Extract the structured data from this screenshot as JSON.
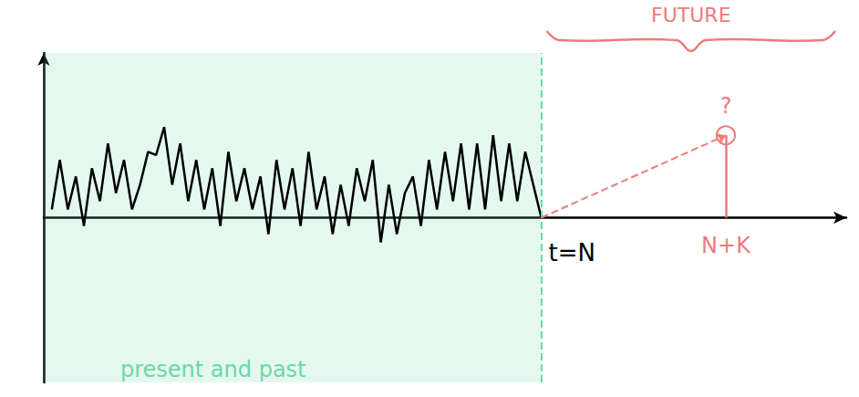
{
  "chart_data": {
    "type": "line",
    "xlim": [
      0,
      100
    ],
    "ylim": [
      -10,
      10
    ],
    "tick_labels": false,
    "grid": false,
    "color": "#000000",
    "x": [
      1,
      2,
      3,
      4,
      5,
      6,
      7,
      8,
      9,
      10,
      11,
      12,
      13,
      14,
      15,
      16,
      17,
      18,
      19,
      20,
      21,
      22,
      23,
      24,
      25,
      26,
      27,
      28,
      29,
      30,
      31,
      32,
      33,
      34,
      35,
      36,
      37,
      38,
      39,
      40,
      41,
      42,
      43,
      44,
      45,
      46,
      47,
      48,
      49,
      50,
      51,
      52,
      53,
      54,
      55,
      56,
      57,
      58,
      59,
      60,
      61,
      62
    ],
    "values": [
      0.5,
      3.5,
      0.5,
      2.5,
      -0.5,
      3,
      1,
      4.5,
      1.5,
      3.5,
      0.5,
      2,
      4,
      3.8,
      5.5,
      2,
      4.5,
      1,
      3.5,
      0.5,
      3,
      -0.5,
      4,
      1,
      3,
      0.5,
      2.5,
      -1,
      3.5,
      0.5,
      3,
      -0.5,
      4,
      0.5,
      2.5,
      -1,
      2,
      -0.5,
      3,
      1,
      3.5,
      -1.5,
      2,
      -1,
      1.5,
      2.5,
      -0.5,
      3.5,
      0.5,
      4,
      1,
      4.5,
      0.5,
      4.5,
      0.5,
      5,
      1,
      4.5,
      1,
      4,
      2,
      0
    ],
    "present": {
      "x": 62,
      "label": "t=N",
      "region_label": "present and past",
      "color": "#6fd6a6",
      "line_style": "dashed"
    },
    "future": {
      "x": 85,
      "value": 5,
      "label": "FUTURE",
      "point_label": "?",
      "x_label": "N+K",
      "color": "#f07a7a",
      "marker": "circle",
      "line_style": "dashed"
    }
  }
}
